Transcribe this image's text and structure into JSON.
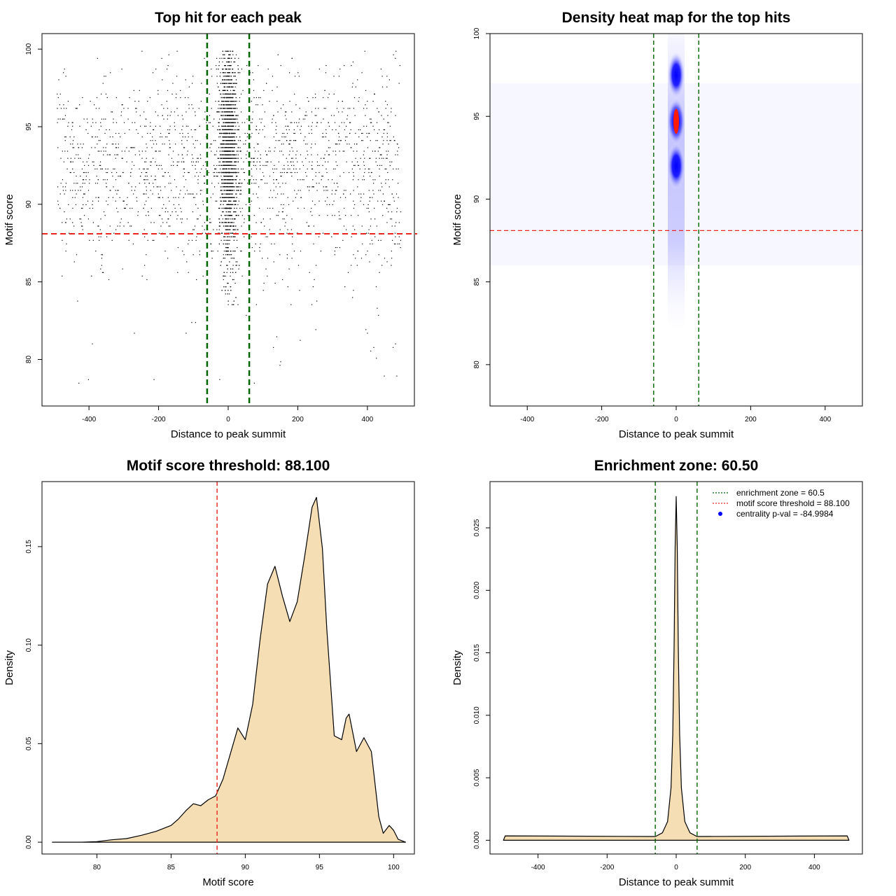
{
  "chart_data": [
    {
      "type": "scatter",
      "title": "Top hit for each peak",
      "xlabel": "Distance to peak summit",
      "ylabel": "Motif score",
      "xlim": [
        -535,
        535
      ],
      "ylim": [
        77,
        101
      ],
      "xticks": [
        -400,
        -200,
        0,
        200,
        400
      ],
      "yticks": [
        80,
        85,
        90,
        95,
        100
      ],
      "vlines": [
        {
          "x": -60.5,
          "color": "#006400"
        },
        {
          "x": 60.5,
          "color": "#006400"
        }
      ],
      "hlines": [
        {
          "y": 88.1,
          "color": "#e8261e"
        }
      ],
      "points_note": "Dense scatter of top motif hits; dense vertical band centred on 0 between about -30 and 30, scores mostly 84 to 100"
    },
    {
      "type": "heatmap",
      "title": "Density heat map for the top hits",
      "xlabel": "Distance to peak summit",
      "ylabel": "Motif score",
      "xlim": [
        -500,
        500
      ],
      "ylim": [
        77.5,
        100
      ],
      "xticks": [
        -400,
        -200,
        0,
        200,
        400
      ],
      "yticks": [
        80,
        85,
        90,
        95,
        100
      ],
      "vlines": [
        {
          "x": -60.5,
          "color": "#006400"
        },
        {
          "x": 60.5,
          "color": "#006400"
        }
      ],
      "hlines": [
        {
          "y": 88.1,
          "color": "#e8261e"
        }
      ],
      "hotspots": [
        {
          "x": 0,
          "y": 94.7,
          "level": "max"
        },
        {
          "x": 0,
          "y": 97.5,
          "level": "high"
        },
        {
          "x": 0,
          "y": 92.0,
          "level": "high"
        }
      ]
    },
    {
      "type": "area",
      "title": "Motif score threshold: 88.100",
      "xlabel": "Motif score",
      "ylabel": "Density",
      "xlim": [
        76.3,
        101.4
      ],
      "ylim": [
        -0.006,
        0.183
      ],
      "xticks": [
        80,
        85,
        90,
        95,
        100
      ],
      "yticks": [
        0.0,
        0.05,
        0.1,
        0.15
      ],
      "ytick_labels": [
        "0.00",
        "0.05",
        "0.10",
        "0.15"
      ],
      "vlines": [
        {
          "x": 88.1,
          "color": "#e8261e"
        }
      ],
      "fill": "#f5deb3",
      "x": [
        77,
        79,
        80,
        81,
        82,
        83,
        84,
        85,
        85.5,
        86,
        86.5,
        87,
        87.5,
        88,
        88.5,
        89,
        89.5,
        90,
        90.5,
        91,
        91.5,
        92,
        92.5,
        93,
        93.5,
        94,
        94.5,
        94.8,
        95.2,
        95.5,
        96,
        96.5,
        96.8,
        97,
        97.5,
        98,
        98.5,
        99,
        99.3,
        99.7,
        100,
        100.3,
        100.8
      ],
      "y": [
        0,
        0,
        0.0003,
        0.0012,
        0.0018,
        0.0035,
        0.0055,
        0.0085,
        0.0118,
        0.016,
        0.0195,
        0.0185,
        0.0215,
        0.0235,
        0.032,
        0.045,
        0.058,
        0.052,
        0.07,
        0.103,
        0.131,
        0.14,
        0.125,
        0.112,
        0.122,
        0.145,
        0.17,
        0.175,
        0.149,
        0.108,
        0.054,
        0.052,
        0.063,
        0.065,
        0.046,
        0.053,
        0.046,
        0.013,
        0.0045,
        0.0085,
        0.006,
        0.0015,
        0
      ]
    },
    {
      "type": "area",
      "title": "Enrichment zone: 60.50",
      "xlabel": "Distance to peak summit",
      "ylabel": "Density",
      "xlim": [
        -539,
        539
      ],
      "ylim": [
        -0.0011,
        0.0287
      ],
      "xticks": [
        -400,
        -200,
        0,
        200,
        400
      ],
      "yticks": [
        0.0,
        0.005,
        0.01,
        0.015,
        0.02,
        0.025
      ],
      "ytick_labels": [
        "0.000",
        "0.005",
        "0.010",
        "0.015",
        "0.020",
        "0.025"
      ],
      "vlines": [
        {
          "x": -60.5,
          "color": "#006400"
        },
        {
          "x": 60.5,
          "color": "#006400"
        }
      ],
      "fill": "#f5deb3",
      "x": [
        -500,
        -495,
        -60,
        -40,
        -25,
        -15,
        -10,
        -6,
        -3,
        0,
        3,
        6,
        10,
        15,
        25,
        40,
        60,
        495,
        500
      ],
      "y": [
        0,
        0.00035,
        0.0003,
        0.0006,
        0.0015,
        0.0042,
        0.0085,
        0.0155,
        0.0235,
        0.0275,
        0.0235,
        0.0155,
        0.0085,
        0.0042,
        0.0015,
        0.0006,
        0.0003,
        0.00035,
        0
      ],
      "legend": {
        "position": "top-right",
        "items": [
          {
            "label": "enrichment zone = 60.5",
            "color": "#006400",
            "style": "dotted"
          },
          {
            "label": "motif score threshold = 88.100",
            "color": "#e8261e",
            "style": "dotted"
          },
          {
            "label": "centrality p-val = -84.9984",
            "color": "#0000ff",
            "style": "point"
          }
        ]
      }
    }
  ]
}
